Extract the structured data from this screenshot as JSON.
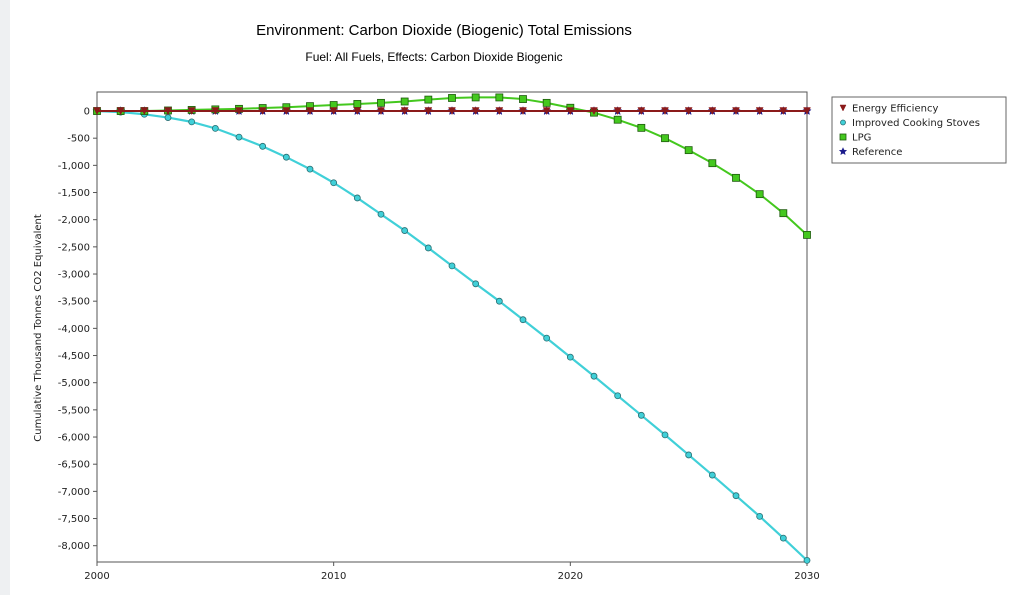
{
  "title": "Environment: Carbon Dioxide (Biogenic) Total Emissions",
  "subtitle": "Fuel: All Fuels, Effects: Carbon Dioxide Biogenic",
  "chart_data": {
    "type": "line",
    "title": "Environment: Carbon Dioxide (Biogenic) Total Emissions",
    "subtitle": "Fuel: All Fuels, Effects: Carbon Dioxide Biogenic",
    "xlabel": "",
    "ylabel": "Cumulative Thousand Tonnes CO2 Equivalent",
    "xlim": [
      2000,
      2030
    ],
    "ylim": [
      -8300,
      350
    ],
    "x_ticks": [
      "2000",
      "2010",
      "2020",
      "2030"
    ],
    "y_ticks": [
      "0",
      "-500",
      "-1,000",
      "-1,500",
      "-2,000",
      "-2,500",
      "-3,000",
      "-3,500",
      "-4,000",
      "-4,500",
      "-5,000",
      "-5,500",
      "-6,000",
      "-6,500",
      "-7,000",
      "-7,500",
      "-8,000"
    ],
    "grid": false,
    "legend_position": "right",
    "x": [
      2000,
      2001,
      2002,
      2003,
      2004,
      2005,
      2006,
      2007,
      2008,
      2009,
      2010,
      2011,
      2012,
      2013,
      2014,
      2015,
      2016,
      2017,
      2018,
      2019,
      2020,
      2021,
      2022,
      2023,
      2024,
      2025,
      2026,
      2027,
      2028,
      2029,
      2030
    ],
    "series": [
      {
        "name": "Energy Efficiency",
        "color": "#8b1a1a",
        "marker": "triangle",
        "values": [
          0,
          0,
          0,
          0,
          0,
          0,
          0,
          0,
          0,
          0,
          0,
          0,
          0,
          0,
          0,
          0,
          0,
          0,
          0,
          0,
          0,
          0,
          0,
          0,
          0,
          0,
          0,
          0,
          0,
          0,
          0
        ]
      },
      {
        "name": "Improved Cooking Stoves",
        "color": "#40d0d8",
        "marker": "circle",
        "values": [
          0,
          -20,
          -60,
          -120,
          -200,
          -320,
          -480,
          -650,
          -850,
          -1070,
          -1320,
          -1600,
          -1900,
          -2200,
          -2520,
          -2850,
          -3180,
          -3500,
          -3840,
          -4180,
          -4530,
          -4880,
          -5240,
          -5600,
          -5960,
          -6330,
          -6700,
          -7080,
          -7460,
          -7860,
          -8270
        ]
      },
      {
        "name": "LPG",
        "color": "#44c81e",
        "marker": "square",
        "values": [
          0,
          0,
          0,
          10,
          20,
          30,
          40,
          55,
          70,
          90,
          110,
          130,
          150,
          175,
          210,
          240,
          250,
          250,
          220,
          150,
          60,
          -30,
          -160,
          -310,
          -500,
          -720,
          -960,
          -1230,
          -1530,
          -1880,
          -2280
        ]
      },
      {
        "name": "Reference",
        "color": "#1a1a8b",
        "marker": "star",
        "values": [
          0,
          0,
          0,
          0,
          0,
          0,
          0,
          0,
          0,
          0,
          0,
          0,
          0,
          0,
          0,
          0,
          0,
          0,
          0,
          0,
          0,
          0,
          0,
          0,
          0,
          0,
          0,
          0,
          0,
          0,
          0
        ]
      }
    ]
  }
}
